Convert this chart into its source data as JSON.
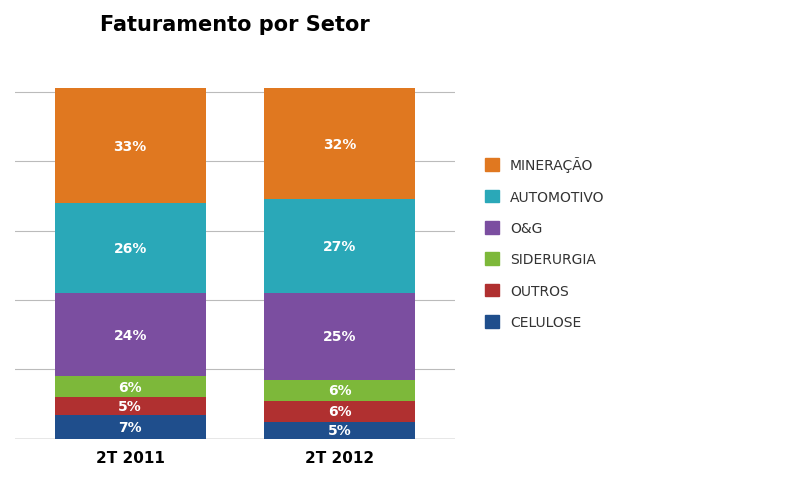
{
  "title": "Faturamento por Setor",
  "categories": [
    "2T 2011",
    "2T 2012"
  ],
  "segments": [
    {
      "label": "CELULOSE",
      "values": [
        7,
        5
      ],
      "color": "#1F4E8C"
    },
    {
      "label": "OUTROS",
      "values": [
        5,
        6
      ],
      "color": "#B03030"
    },
    {
      "label": "SIDERURGIA",
      "values": [
        6,
        6
      ],
      "color": "#7DB83A"
    },
    {
      "label": "O&G",
      "values": [
        24,
        25
      ],
      "color": "#7B4EA0"
    },
    {
      "label": "AUTOMOTIVO",
      "values": [
        26,
        27
      ],
      "color": "#2AA8B8"
    },
    {
      "label": "MINERAÇÃO",
      "values": [
        33,
        32
      ],
      "color": "#E07820"
    }
  ],
  "legend_order": [
    "MINERAÇÃO",
    "AUTOMOTIVO",
    "O&G",
    "SIDERURGIA",
    "OUTROS",
    "CELULOSE"
  ],
  "bar_positions": [
    1,
    2
  ],
  "bar_width": 0.72,
  "title_fontsize": 15,
  "label_fontsize": 10,
  "tick_fontsize": 11,
  "legend_fontsize": 10,
  "ylim": [
    0,
    113
  ],
  "yticks": [
    0,
    20,
    40,
    60,
    80,
    100
  ],
  "background_color": "#FFFFFF",
  "grid_color": "#BBBBBB"
}
